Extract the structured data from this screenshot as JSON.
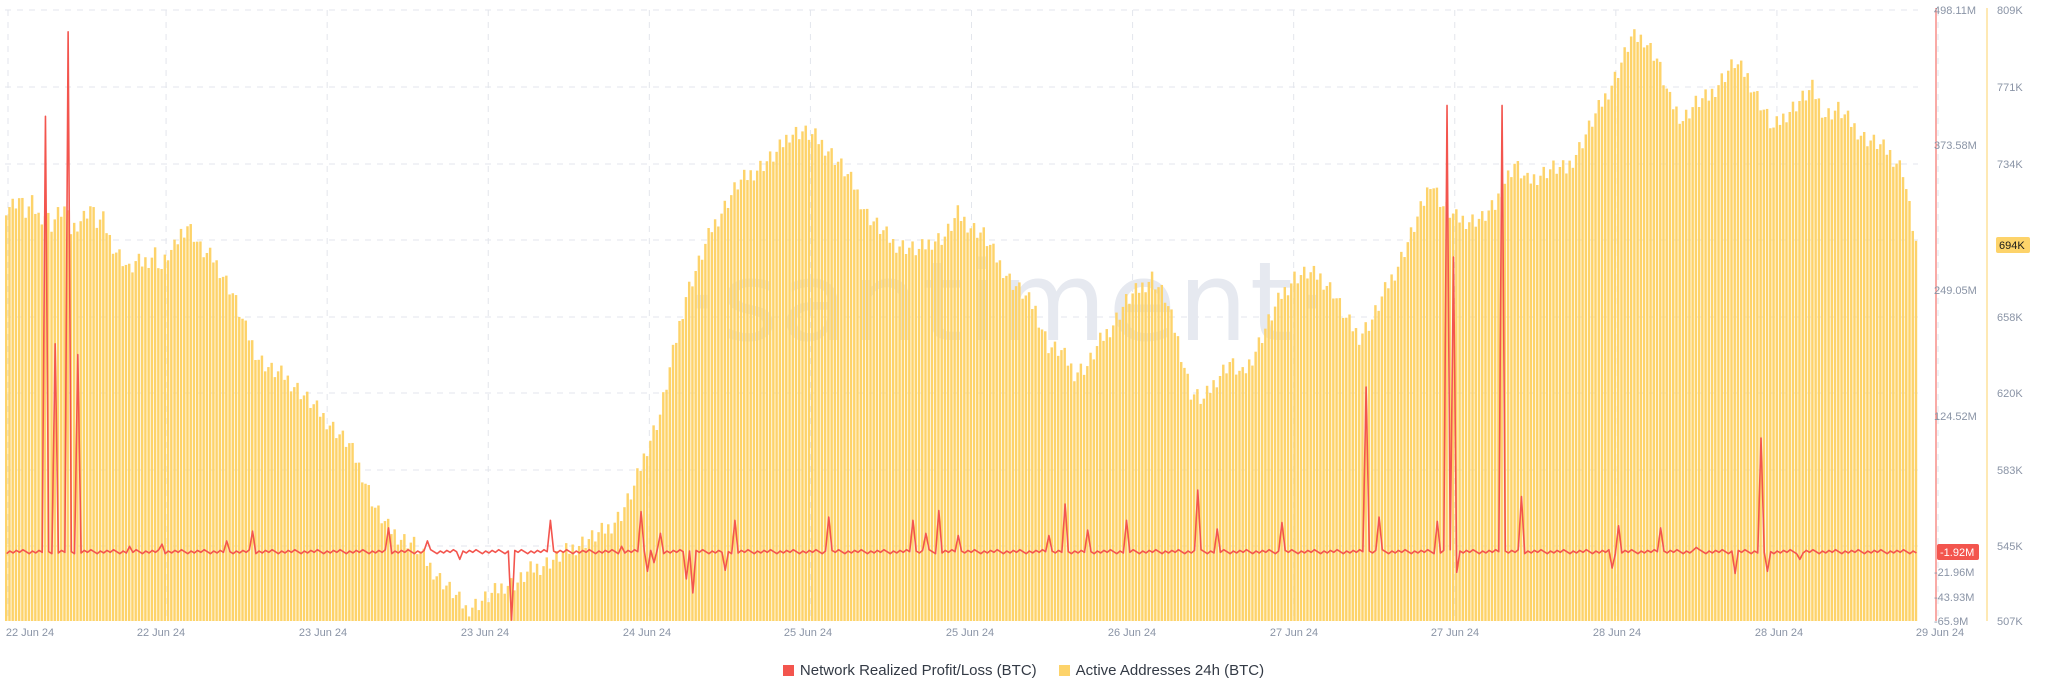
{
  "chart_data": {
    "type": "bar+line",
    "watermark": "·santiment·",
    "x_ticks": [
      "22 Jun 24",
      "22 Jun 24",
      "23 Jun 24",
      "23 Jun 24",
      "24 Jun 24",
      "25 Jun 24",
      "25 Jun 24",
      "26 Jun 24",
      "27 Jun 24",
      "27 Jun 24",
      "28 Jun 24",
      "28 Jun 24",
      "29 Jun 24"
    ],
    "left_axis": {
      "ticks": [
        "498.11M",
        "373.58M",
        "249.05M",
        "124.52M",
        "-21.96M",
        "-43.93M",
        "-65.9M"
      ],
      "ylim": [
        -65.9,
        498.11
      ],
      "unit": "M"
    },
    "right_axis": {
      "ticks": [
        "809K",
        "771K",
        "734K",
        "694K",
        "658K",
        "620K",
        "583K",
        "545K",
        "507K"
      ],
      "ylim": [
        507,
        809
      ],
      "unit": "K"
    },
    "current_badges": {
      "profit_loss": "-1.92M",
      "active_addresses": "694K"
    },
    "colors": {
      "bars": "#fdd36a",
      "line": "#f3554e",
      "badge_red": "#f3554e",
      "badge_yellow": "#fdd36a",
      "grid": "#e3e6ec"
    },
    "series": [
      {
        "name": "Active Addresses 24h (BTC)",
        "axis": "right",
        "kind": "bar",
        "anchors": [
          [
            0,
            712
          ],
          [
            2,
            713
          ],
          [
            4,
            716
          ],
          [
            6,
            709
          ],
          [
            8,
            713
          ],
          [
            10,
            707
          ],
          [
            12,
            708
          ],
          [
            13,
            706
          ],
          [
            14,
            703
          ],
          [
            16,
            708
          ],
          [
            18,
            711
          ],
          [
            20,
            700
          ],
          [
            22,
            704
          ],
          [
            24,
            707
          ],
          [
            26,
            712
          ],
          [
            28,
            704
          ],
          [
            30,
            705
          ],
          [
            32,
            696
          ],
          [
            34,
            690
          ],
          [
            36,
            686
          ],
          [
            38,
            680
          ],
          [
            40,
            684
          ],
          [
            42,
            684
          ],
          [
            44,
            686
          ],
          [
            46,
            689
          ],
          [
            48,
            681
          ],
          [
            50,
            688
          ],
          [
            52,
            691
          ],
          [
            54,
            699
          ],
          [
            56,
            703
          ],
          [
            58,
            698
          ],
          [
            60,
            691
          ],
          [
            62,
            688
          ],
          [
            64,
            686
          ],
          [
            66,
            681
          ],
          [
            70,
            669
          ],
          [
            74,
            651
          ],
          [
            78,
            637
          ],
          [
            82,
            631
          ],
          [
            86,
            628
          ],
          [
            90,
            622
          ],
          [
            94,
            615
          ],
          [
            98,
            608
          ],
          [
            102,
            601
          ],
          [
            106,
            594
          ],
          [
            110,
            580
          ],
          [
            114,
            563
          ],
          [
            118,
            553
          ],
          [
            122,
            548
          ],
          [
            126,
            545
          ],
          [
            130,
            536
          ],
          [
            134,
            528
          ],
          [
            138,
            521
          ],
          [
            142,
            513
          ],
          [
            146,
            516
          ],
          [
            150,
            520
          ],
          [
            154,
            525
          ],
          [
            158,
            526
          ],
          [
            162,
            532
          ],
          [
            166,
            535
          ],
          [
            170,
            538
          ],
          [
            174,
            542
          ],
          [
            178,
            546
          ],
          [
            182,
            549
          ],
          [
            186,
            553
          ],
          [
            190,
            560
          ],
          [
            194,
            573
          ],
          [
            198,
            593
          ],
          [
            202,
            609
          ],
          [
            206,
            639
          ],
          [
            210,
            668
          ],
          [
            214,
            684
          ],
          [
            218,
            701
          ],
          [
            222,
            712
          ],
          [
            226,
            723
          ],
          [
            230,
            728
          ],
          [
            234,
            733
          ],
          [
            238,
            738
          ],
          [
            242,
            748
          ],
          [
            246,
            749
          ],
          [
            250,
            746
          ],
          [
            254,
            740
          ],
          [
            258,
            732
          ],
          [
            262,
            722
          ],
          [
            266,
            708
          ],
          [
            270,
            701
          ],
          [
            274,
            694
          ],
          [
            278,
            692
          ],
          [
            282,
            690
          ],
          [
            286,
            695
          ],
          [
            290,
            697
          ],
          [
            294,
            708
          ],
          [
            298,
            702
          ],
          [
            302,
            698
          ],
          [
            306,
            686
          ],
          [
            310,
            676
          ],
          [
            314,
            669
          ],
          [
            318,
            661
          ],
          [
            322,
            643
          ],
          [
            326,
            640
          ],
          [
            330,
            630
          ],
          [
            334,
            633
          ],
          [
            338,
            645
          ],
          [
            342,
            654
          ],
          [
            346,
            665
          ],
          [
            350,
            671
          ],
          [
            354,
            677
          ],
          [
            358,
            667
          ],
          [
            362,
            646
          ],
          [
            366,
            620
          ],
          [
            370,
            616
          ],
          [
            374,
            627
          ],
          [
            378,
            635
          ],
          [
            382,
            628
          ],
          [
            386,
            641
          ],
          [
            390,
            655
          ],
          [
            394,
            668
          ],
          [
            398,
            677
          ],
          [
            402,
            679
          ],
          [
            406,
            677
          ],
          [
            410,
            670
          ],
          [
            414,
            656
          ],
          [
            418,
            648
          ],
          [
            422,
            656
          ],
          [
            426,
            670
          ],
          [
            430,
            683
          ],
          [
            434,
            698
          ],
          [
            438,
            714
          ],
          [
            440,
            725
          ],
          [
            444,
            712
          ],
          [
            448,
            706
          ],
          [
            452,
            705
          ],
          [
            456,
            706
          ],
          [
            460,
            712
          ],
          [
            462,
            721
          ],
          [
            466,
            733
          ],
          [
            470,
            724
          ],
          [
            474,
            728
          ],
          [
            478,
            731
          ],
          [
            482,
            730
          ],
          [
            486,
            741
          ],
          [
            490,
            754
          ],
          [
            494,
            766
          ],
          [
            498,
            779
          ],
          [
            502,
            795
          ],
          [
            506,
            795
          ],
          [
            510,
            785
          ],
          [
            514,
            764
          ],
          [
            518,
            755
          ],
          [
            522,
            763
          ],
          [
            526,
            766
          ],
          [
            530,
            775
          ],
          [
            534,
            783
          ],
          [
            538,
            776
          ],
          [
            542,
            763
          ],
          [
            546,
            750
          ],
          [
            550,
            758
          ],
          [
            554,
            764
          ],
          [
            558,
            770
          ],
          [
            562,
            757
          ],
          [
            566,
            760
          ],
          [
            570,
            753
          ],
          [
            574,
            746
          ],
          [
            578,
            743
          ],
          [
            582,
            738
          ],
          [
            586,
            730
          ],
          [
            588,
            711
          ],
          [
            590,
            694
          ]
        ]
      },
      {
        "name": "Network Realized Profit/Loss (BTC)",
        "axis": "left",
        "kind": "line",
        "baseline": -1.92,
        "spikes": [
          [
            12,
            400
          ],
          [
            15,
            190
          ],
          [
            19,
            478
          ],
          [
            22,
            180
          ],
          [
            38,
            3
          ],
          [
            48,
            5
          ],
          [
            68,
            8
          ],
          [
            76,
            17
          ],
          [
            118,
            20
          ],
          [
            130,
            8
          ],
          [
            140,
            -9
          ],
          [
            168,
            27
          ],
          [
            190,
            3
          ],
          [
            196,
            35
          ],
          [
            198,
            -20
          ],
          [
            202,
            15
          ],
          [
            212,
            -40
          ],
          [
            222,
            -19
          ],
          [
            225,
            27
          ],
          [
            254,
            30
          ],
          [
            280,
            27
          ],
          [
            284,
            15
          ],
          [
            288,
            36
          ],
          [
            294,
            13
          ],
          [
            322,
            13
          ],
          [
            327,
            42
          ],
          [
            334,
            18
          ],
          [
            346,
            27
          ],
          [
            368,
            55
          ],
          [
            374,
            19
          ],
          [
            394,
            25
          ],
          [
            420,
            150
          ],
          [
            424,
            30
          ],
          [
            442,
            26
          ],
          [
            445,
            410
          ],
          [
            447,
            270
          ],
          [
            462,
            410
          ],
          [
            468,
            49
          ],
          [
            496,
            -17
          ],
          [
            498,
            22
          ],
          [
            511,
            20
          ],
          [
            522,
            2
          ],
          [
            542,
            103
          ],
          [
            534,
            -18
          ],
          [
            554,
            -9
          ]
        ],
        "dips": [
          [
            156,
            -65
          ],
          [
            210,
            -27
          ],
          [
            200,
            -12
          ],
          [
            448,
            -21
          ],
          [
            534,
            -22
          ],
          [
            544,
            -20
          ]
        ]
      }
    ]
  },
  "legend": [
    {
      "label": "Network Realized Profit/Loss (BTC)",
      "color": "#f3554e"
    },
    {
      "label": "Active Addresses 24h (BTC)",
      "color": "#fdd36a"
    }
  ]
}
